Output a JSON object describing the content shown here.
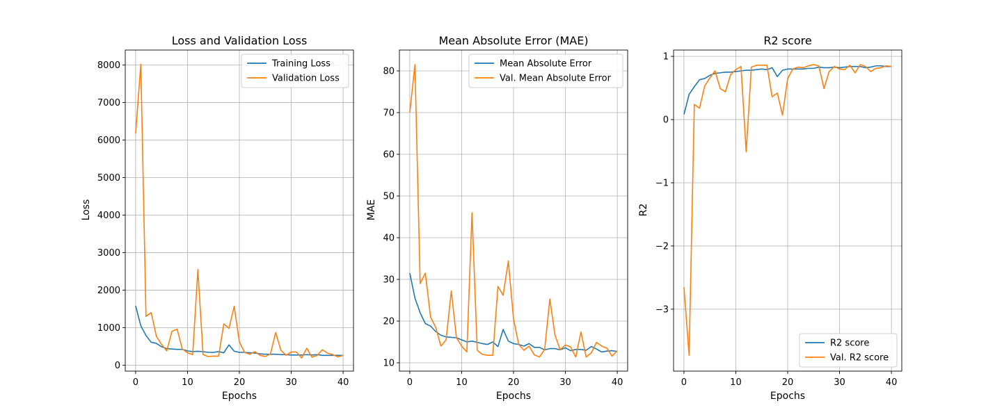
{
  "figure": {
    "background": "#ffffff"
  },
  "chart_data": [
    {
      "type": "line",
      "title": "Loss and Validation Loss",
      "xlabel": "Epochs",
      "ylabel": "Loss",
      "xlim": [
        -2,
        42
      ],
      "ylim": [
        -160,
        8400
      ],
      "xticks": [
        0,
        10,
        20,
        30,
        40
      ],
      "yticks": [
        0,
        1000,
        2000,
        3000,
        4000,
        5000,
        6000,
        7000,
        8000
      ],
      "ytick_labels": [
        "0",
        "1000",
        "2000",
        "3000",
        "4000",
        "5000",
        "6000",
        "7000",
        "8000"
      ],
      "grid": true,
      "legend_position": "top-right",
      "x": [
        0,
        1,
        2,
        3,
        4,
        5,
        6,
        7,
        8,
        9,
        10,
        11,
        12,
        13,
        14,
        15,
        16,
        17,
        18,
        19,
        20,
        21,
        22,
        23,
        24,
        25,
        26,
        27,
        28,
        29,
        30,
        31,
        32,
        33,
        34,
        35,
        36,
        37,
        38,
        39,
        40
      ],
      "series": [
        {
          "name": "Training Loss",
          "color": "#1f77b4",
          "values": [
            1580,
            1050,
            790,
            610,
            580,
            490,
            440,
            430,
            420,
            420,
            380,
            360,
            370,
            360,
            340,
            340,
            360,
            330,
            540,
            370,
            340,
            340,
            330,
            320,
            300,
            290,
            290,
            290,
            280,
            280,
            270,
            270,
            270,
            280,
            270,
            280,
            260,
            260,
            260,
            260,
            260
          ]
        },
        {
          "name": "Validation Loss",
          "color": "#ff7f0e",
          "values": [
            6170,
            8020,
            1300,
            1400,
            770,
            550,
            380,
            900,
            960,
            430,
            330,
            280,
            2550,
            280,
            230,
            240,
            240,
            1100,
            980,
            1570,
            620,
            340,
            290,
            360,
            260,
            230,
            300,
            870,
            400,
            260,
            350,
            350,
            190,
            450,
            210,
            260,
            410,
            320,
            280,
            220,
            260
          ]
        }
      ]
    },
    {
      "type": "line",
      "title": "Mean Absolute Error (MAE)",
      "xlabel": "Epochs",
      "ylabel": "MAE",
      "xlim": [
        -2,
        42
      ],
      "ylim": [
        8,
        85
      ],
      "xticks": [
        0,
        10,
        20,
        30,
        40
      ],
      "yticks": [
        10,
        20,
        30,
        40,
        50,
        60,
        70,
        80
      ],
      "ytick_labels": [
        "10",
        "20",
        "30",
        "40",
        "50",
        "60",
        "70",
        "80"
      ],
      "grid": true,
      "legend_position": "top-right",
      "x": [
        0,
        1,
        2,
        3,
        4,
        5,
        6,
        7,
        8,
        9,
        10,
        11,
        12,
        13,
        14,
        15,
        16,
        17,
        18,
        19,
        20,
        21,
        22,
        23,
        24,
        25,
        26,
        27,
        28,
        29,
        30,
        31,
        32,
        33,
        34,
        35,
        36,
        37,
        38,
        39,
        40
      ],
      "series": [
        {
          "name": "Mean Absolute Error",
          "color": "#1f77b4",
          "values": [
            31.5,
            25.5,
            22,
            19.4,
            18.8,
            17.5,
            16.6,
            16.2,
            16.1,
            16,
            15.5,
            15,
            15.2,
            14.9,
            14.6,
            14.4,
            15,
            13.9,
            18,
            15.2,
            14.6,
            14.4,
            14,
            14.6,
            13.7,
            13.7,
            13.1,
            13.4,
            13.4,
            13.1,
            13.6,
            12.9,
            13.2,
            13.2,
            13,
            13.9,
            13.3,
            12.6,
            12.8,
            12.9,
            12.7
          ]
        },
        {
          "name": "Val. Mean Absolute Error",
          "color": "#ff7f0e",
          "values": [
            70,
            81.5,
            29,
            31.5,
            21,
            18.5,
            14,
            15.5,
            27.2,
            16,
            14,
            12.6,
            46,
            13,
            12,
            11.8,
            11.8,
            28.3,
            26.2,
            34.4,
            20.5,
            14.4,
            13,
            14,
            11.9,
            11.4,
            13.2,
            25.3,
            16.6,
            13.1,
            14.3,
            13.8,
            11.4,
            17.4,
            11.4,
            12.4,
            14.9,
            14,
            13.5,
            11.6,
            12.9
          ]
        }
      ]
    },
    {
      "type": "line",
      "title": "R2 score",
      "xlabel": "Epochs",
      "ylabel": "R2",
      "xlim": [
        -2,
        42
      ],
      "ylim": [
        -3.98,
        1.1
      ],
      "xticks": [
        0,
        10,
        20,
        30,
        40
      ],
      "yticks": [
        1,
        0,
        -1,
        -2,
        -3
      ],
      "ytick_labels": [
        "1",
        "0",
        "−1",
        "−2",
        "−3"
      ],
      "grid": true,
      "legend_position": "bottom-right",
      "x": [
        0,
        1,
        2,
        3,
        4,
        5,
        6,
        7,
        8,
        9,
        10,
        11,
        12,
        13,
        14,
        15,
        16,
        17,
        18,
        19,
        20,
        21,
        22,
        23,
        24,
        25,
        26,
        27,
        28,
        29,
        30,
        31,
        32,
        33,
        34,
        35,
        36,
        37,
        38,
        39,
        40
      ],
      "series": [
        {
          "name": "R2 score",
          "color": "#1f77b4",
          "values": [
            0.08,
            0.4,
            0.52,
            0.63,
            0.65,
            0.7,
            0.73,
            0.74,
            0.75,
            0.75,
            0.76,
            0.77,
            0.78,
            0.78,
            0.79,
            0.8,
            0.79,
            0.82,
            0.68,
            0.78,
            0.8,
            0.8,
            0.8,
            0.8,
            0.81,
            0.81,
            0.83,
            0.82,
            0.82,
            0.83,
            0.82,
            0.83,
            0.84,
            0.84,
            0.84,
            0.82,
            0.83,
            0.85,
            0.85,
            0.84,
            0.84
          ]
        },
        {
          "name": "Val. R2 score",
          "color": "#ff7f0e",
          "values": [
            -2.65,
            -3.73,
            0.24,
            0.18,
            0.53,
            0.66,
            0.77,
            0.49,
            0.44,
            0.71,
            0.79,
            0.84,
            -0.51,
            0.83,
            0.86,
            0.86,
            0.86,
            0.36,
            0.42,
            0.07,
            0.65,
            0.8,
            0.83,
            0.82,
            0.85,
            0.87,
            0.85,
            0.49,
            0.76,
            0.84,
            0.8,
            0.79,
            0.86,
            0.74,
            0.87,
            0.84,
            0.76,
            0.81,
            0.82,
            0.85,
            0.84
          ]
        }
      ]
    }
  ]
}
